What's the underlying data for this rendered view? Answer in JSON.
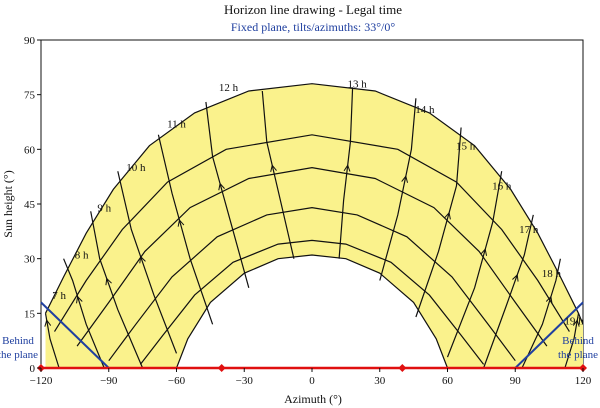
{
  "chart_data": {
    "type": "line",
    "title": "Horizon line drawing - Legal time",
    "subtitle": "Fixed plane, tilts/azimuths: 33°/0°",
    "xlabel": "Azimuth (°)",
    "ylabel": "Sun height (°)",
    "xlim": [
      -120,
      120
    ],
    "ylim": [
      0,
      90
    ],
    "xticks": [
      -120,
      -90,
      -60,
      -30,
      0,
      30,
      60,
      90,
      120
    ],
    "yticks": [
      0,
      15,
      30,
      45,
      60,
      75,
      90
    ],
    "grid": false,
    "annotations": [
      "Behind the plane",
      "Behind the plane"
    ],
    "colors": {
      "fill": "#faf28c",
      "line": "#111111",
      "plane": "#2040a0",
      "horizon": "#e01010",
      "subtitle": "#2040a0"
    },
    "hour_labels": [
      {
        "label": "7 h",
        "x": -112,
        "y": 19
      },
      {
        "label": "8 h",
        "x": -102,
        "y": 30
      },
      {
        "label": "9 h",
        "x": -92,
        "y": 43
      },
      {
        "label": "10 h",
        "x": -78,
        "y": 54
      },
      {
        "label": "11 h",
        "x": -60,
        "y": 66
      },
      {
        "label": "12 h",
        "x": -37,
        "y": 76
      },
      {
        "label": "13 h",
        "x": 20,
        "y": 77
      },
      {
        "label": "14 h",
        "x": 50,
        "y": 70
      },
      {
        "label": "15 h",
        "x": 68,
        "y": 60
      },
      {
        "label": "16 h",
        "x": 84,
        "y": 49
      },
      {
        "label": "17 h",
        "x": 96,
        "y": 37
      },
      {
        "label": "18 h",
        "x": 106,
        "y": 25
      },
      {
        "label": "19 h",
        "x": 116,
        "y": 12
      }
    ],
    "series": [
      {
        "role": "summer-solstice-path",
        "points": [
          [
            -118,
            15
          ],
          [
            -110,
            25
          ],
          [
            -100,
            37
          ],
          [
            -88,
            49
          ],
          [
            -72,
            61
          ],
          [
            -52,
            70
          ],
          [
            -28,
            76
          ],
          [
            0,
            78
          ],
          [
            28,
            76
          ],
          [
            52,
            70
          ],
          [
            72,
            61
          ],
          [
            88,
            49
          ],
          [
            100,
            37
          ],
          [
            110,
            25
          ],
          [
            118,
            15
          ],
          [
            120,
            12
          ]
        ]
      },
      {
        "role": "winter-solstice-path",
        "points": [
          [
            -60,
            0
          ],
          [
            -55,
            8
          ],
          [
            -45,
            18
          ],
          [
            -30,
            26
          ],
          [
            -15,
            30
          ],
          [
            0,
            31
          ],
          [
            15,
            30
          ],
          [
            30,
            26
          ],
          [
            45,
            18
          ],
          [
            55,
            8
          ],
          [
            60,
            0
          ]
        ]
      },
      {
        "role": "declination-path",
        "points": [
          [
            -114,
            10
          ],
          [
            -100,
            24
          ],
          [
            -84,
            38
          ],
          [
            -64,
            51
          ],
          [
            -38,
            60
          ],
          [
            0,
            64
          ],
          [
            38,
            60
          ],
          [
            64,
            51
          ],
          [
            84,
            38
          ],
          [
            100,
            24
          ],
          [
            114,
            10
          ]
        ]
      },
      {
        "role": "declination-path",
        "points": [
          [
            -104,
            6
          ],
          [
            -90,
            18
          ],
          [
            -74,
            32
          ],
          [
            -54,
            44
          ],
          [
            -28,
            52
          ],
          [
            0,
            55
          ],
          [
            28,
            52
          ],
          [
            54,
            44
          ],
          [
            74,
            32
          ],
          [
            90,
            18
          ],
          [
            104,
            6
          ]
        ]
      },
      {
        "role": "declination-path",
        "points": [
          [
            -90,
            2
          ],
          [
            -78,
            12
          ],
          [
            -62,
            25
          ],
          [
            -42,
            36
          ],
          [
            -20,
            42
          ],
          [
            0,
            44
          ],
          [
            20,
            42
          ],
          [
            42,
            36
          ],
          [
            62,
            25
          ],
          [
            78,
            12
          ],
          [
            90,
            2
          ]
        ]
      },
      {
        "role": "declination-path",
        "points": [
          [
            -76,
            1
          ],
          [
            -66,
            9
          ],
          [
            -52,
            20
          ],
          [
            -35,
            29
          ],
          [
            -15,
            34
          ],
          [
            0,
            35
          ],
          [
            15,
            34
          ],
          [
            35,
            29
          ],
          [
            52,
            20
          ],
          [
            66,
            9
          ],
          [
            76,
            1
          ]
        ]
      },
      {
        "role": "hour-line",
        "points": [
          [
            -112,
            0
          ],
          [
            -116,
            8
          ],
          [
            -118,
            15
          ]
        ]
      },
      {
        "role": "hour-line",
        "points": [
          [
            -92,
            0
          ],
          [
            -100,
            12
          ],
          [
            -106,
            24
          ],
          [
            -110,
            30
          ]
        ]
      },
      {
        "role": "hour-line",
        "points": [
          [
            -75,
            0
          ],
          [
            -86,
            16
          ],
          [
            -94,
            30
          ],
          [
            -98,
            43
          ]
        ]
      },
      {
        "role": "hour-line",
        "points": [
          [
            -60,
            4
          ],
          [
            -70,
            20
          ],
          [
            -80,
            38
          ],
          [
            -86,
            54
          ]
        ]
      },
      {
        "role": "hour-line",
        "points": [
          [
            -44,
            12
          ],
          [
            -54,
            30
          ],
          [
            -62,
            48
          ],
          [
            -68,
            64
          ]
        ]
      },
      {
        "role": "hour-line",
        "points": [
          [
            -28,
            22
          ],
          [
            -36,
            40
          ],
          [
            -44,
            58
          ],
          [
            -47,
            73
          ]
        ]
      },
      {
        "role": "hour-line",
        "points": [
          [
            -8,
            30
          ],
          [
            -14,
            46
          ],
          [
            -20,
            62
          ],
          [
            -22,
            76
          ]
        ]
      },
      {
        "role": "hour-line",
        "points": [
          [
            12,
            30
          ],
          [
            14,
            46
          ],
          [
            17,
            62
          ],
          [
            18,
            77
          ]
        ]
      },
      {
        "role": "hour-line",
        "points": [
          [
            30,
            24
          ],
          [
            38,
            42
          ],
          [
            44,
            60
          ],
          [
            46,
            74
          ]
        ]
      },
      {
        "role": "hour-line",
        "points": [
          [
            46,
            14
          ],
          [
            56,
            32
          ],
          [
            64,
            50
          ],
          [
            66,
            66
          ]
        ]
      },
      {
        "role": "hour-line",
        "points": [
          [
            60,
            3
          ],
          [
            72,
            22
          ],
          [
            80,
            40
          ],
          [
            84,
            54
          ]
        ]
      },
      {
        "role": "hour-line",
        "points": [
          [
            76,
            0
          ],
          [
            86,
            17
          ],
          [
            94,
            31
          ],
          [
            98,
            42
          ]
        ]
      },
      {
        "role": "hour-line",
        "points": [
          [
            93,
            0
          ],
          [
            102,
            12
          ],
          [
            108,
            24
          ],
          [
            110,
            30
          ]
        ]
      },
      {
        "role": "hour-line",
        "points": [
          [
            112,
            0
          ],
          [
            116,
            8
          ],
          [
            118,
            15
          ]
        ]
      }
    ],
    "plane_lines": [
      {
        "points": [
          [
            -120,
            18
          ],
          [
            -90,
            0
          ]
        ]
      },
      {
        "points": [
          [
            90,
            0
          ],
          [
            120,
            18
          ]
        ]
      }
    ],
    "horizon_line": {
      "points": [
        [
          -120,
          0
        ],
        [
          120,
          0
        ]
      ]
    },
    "horizon_markers": [
      [
        -120,
        0
      ],
      [
        -40,
        0
      ],
      [
        40,
        0
      ],
      [
        120,
        0
      ]
    ]
  }
}
